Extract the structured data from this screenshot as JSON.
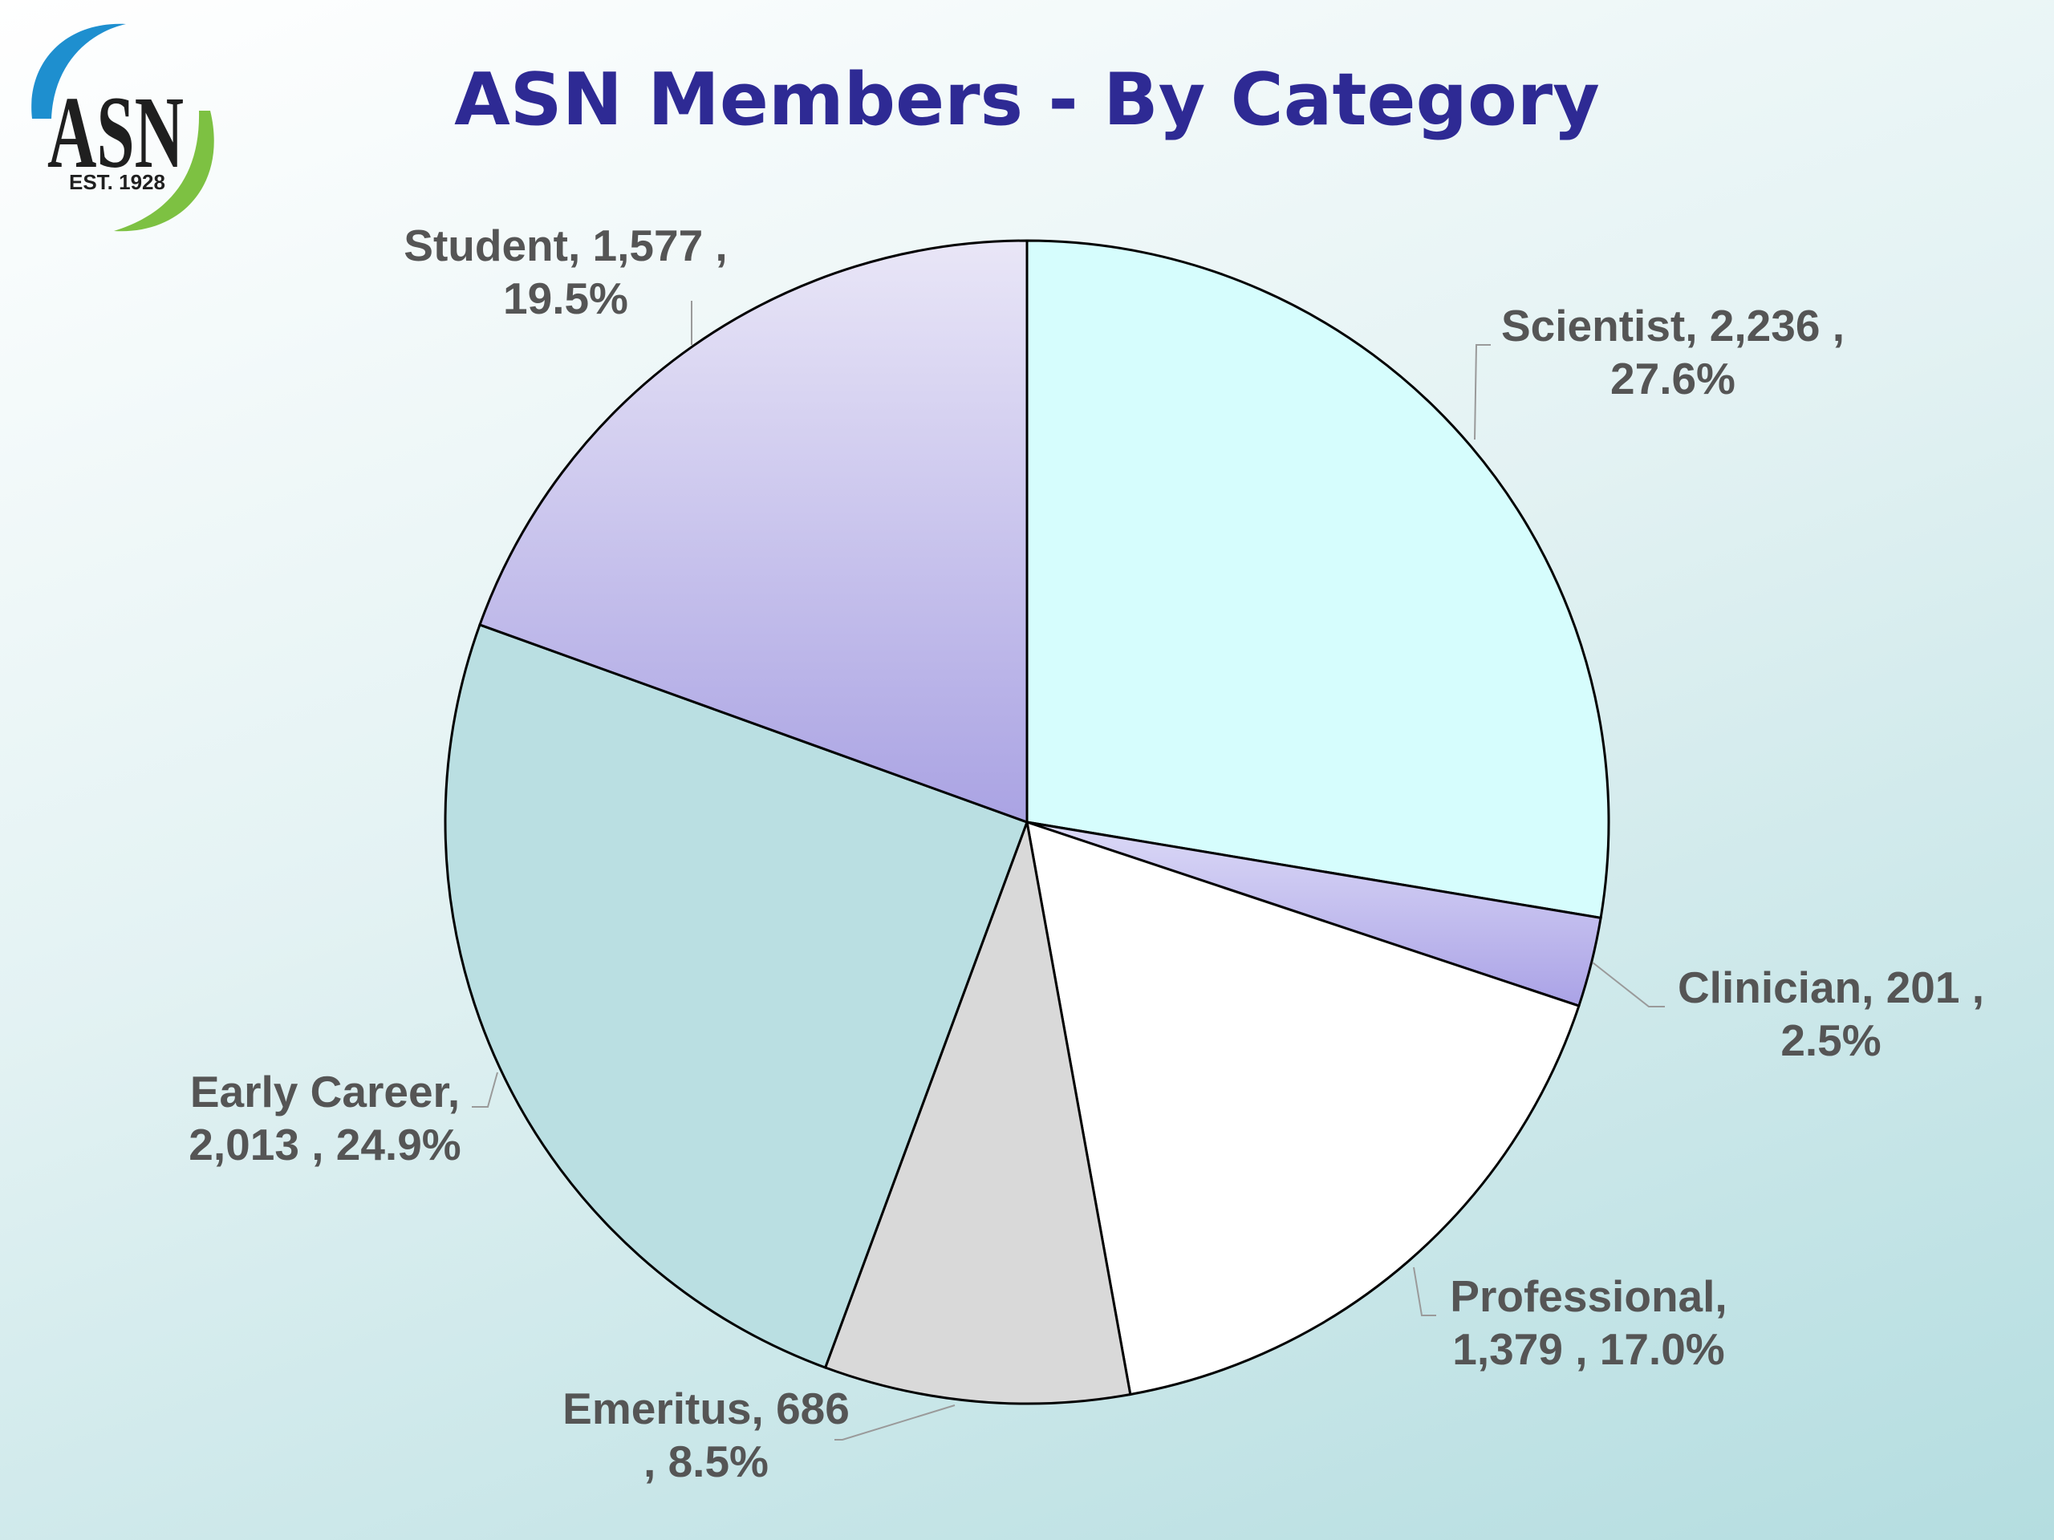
{
  "logo": {
    "text": "ASN",
    "est": "EST. 1928"
  },
  "chart_data": {
    "type": "pie",
    "title": "ASN Members - By Category",
    "start_angle_deg": 0,
    "direction": "clockwise",
    "slices": [
      {
        "label": "Scientist",
        "value": 2236,
        "percent": "27.6%",
        "value_text": "2,236",
        "color": "#d6fdfd",
        "lines": [
          "Scientist, 2,236 ,",
          "27.6%"
        ]
      },
      {
        "label": "Clinician",
        "value": 201,
        "percent": "2.5%",
        "value_text": "201",
        "color": "#c8c4f0",
        "lines": [
          "Clinician, 201 ,",
          "2.5%"
        ]
      },
      {
        "label": "Professional",
        "value": 1379,
        "percent": "17.0%",
        "value_text": "1,379",
        "color": "#ffffff",
        "lines": [
          "Professional,",
          "1,379 , 17.0%"
        ]
      },
      {
        "label": "Emeritus",
        "value": 686,
        "percent": "8.5%",
        "value_text": "686",
        "color": "#d9d9d9",
        "lines": [
          "Emeritus, 686",
          ", 8.5%"
        ]
      },
      {
        "label": "Early Career",
        "value": 2013,
        "percent": "24.9%",
        "value_text": "2,013",
        "color": "#badfe2",
        "lines": [
          "Early Career,",
          "2,013 , 24.9%"
        ]
      },
      {
        "label": "Student",
        "value": 1577,
        "percent": "19.5%",
        "value_text": "1,577",
        "color": "#c7c2ec",
        "lines": [
          "Student, 1,577 ,",
          "19.5%"
        ]
      }
    ]
  }
}
